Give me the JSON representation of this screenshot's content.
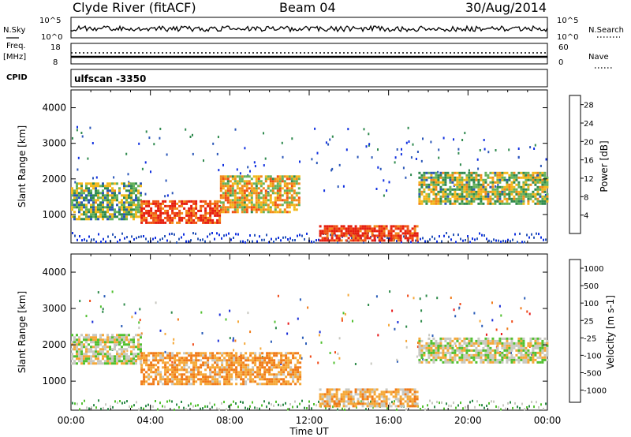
{
  "header": {
    "station": "Clyde River (fitACF)",
    "beam": "Beam 04",
    "date": "30/Aug/2014"
  },
  "top_panel": {
    "left_label": "N.Sky",
    "right_label": "N.Search",
    "left_ticks": [
      "10^5",
      "10^0"
    ],
    "right_ticks": [
      "10^5",
      "10^0"
    ]
  },
  "freq_panel": {
    "left_label_line1": "Freq.",
    "left_label_line2": "[MHz]",
    "right_label": "Nave",
    "left_ticks": [
      "18",
      "8"
    ],
    "right_ticks": [
      "60",
      "0"
    ]
  },
  "cpid_panel": {
    "label": "CPID",
    "value": "ulfscan -3350"
  },
  "colors": {
    "power_scale": [
      "#1030e0",
      "#2a56b8",
      "#2f8a4e",
      "#66b25a",
      "#f2b81a",
      "#f28a1a",
      "#f05012",
      "#e61e0e"
    ],
    "velocity_scale": [
      "#e8181a",
      "#f04a18",
      "#f07a18",
      "#f5a838",
      "#c8c8c0",
      "#52c030",
      "#2e8a4a",
      "#2a5cb8",
      "#1a2ed8"
    ]
  },
  "chart_data": [
    {
      "type": "heatmap",
      "title": "Power",
      "xlabel": "Time UT",
      "ylabel": "Slant Range [km]",
      "x_ticks": [
        "00:00",
        "04:00",
        "08:00",
        "12:00",
        "16:00",
        "20:00",
        "00:00"
      ],
      "x_range_hours": [
        0,
        24
      ],
      "y_ticks": [
        1000,
        2000,
        3000,
        4000
      ],
      "ylim": [
        200,
        4500
      ],
      "colorbar": {
        "label": "Power [dB]",
        "ticks": [
          4,
          8,
          12,
          16,
          20,
          24,
          28
        ],
        "range": [
          0,
          30
        ]
      },
      "echo_bands": [
        {
          "start_h": 0.0,
          "end_h": 3.5,
          "range_km": [
            900,
            1900
          ],
          "level_db": 12
        },
        {
          "start_h": 3.5,
          "end_h": 7.5,
          "range_km": [
            800,
            1400
          ],
          "level_db": 26
        },
        {
          "start_h": 7.5,
          "end_h": 11.5,
          "range_km": [
            1100,
            2100
          ],
          "level_db": 18
        },
        {
          "start_h": 12.5,
          "end_h": 17.5,
          "range_km": [
            300,
            700
          ],
          "level_db": 27
        },
        {
          "start_h": 17.5,
          "end_h": 24.0,
          "range_km": [
            1300,
            2200
          ],
          "level_db": 14
        }
      ]
    },
    {
      "type": "heatmap",
      "title": "Velocity",
      "xlabel": "Time UT",
      "ylabel": "Slant Range [km]",
      "x_ticks": [
        "00:00",
        "04:00",
        "08:00",
        "12:00",
        "16:00",
        "20:00",
        "00:00"
      ],
      "x_range_hours": [
        0,
        24
      ],
      "y_ticks": [
        1000,
        2000,
        3000,
        4000
      ],
      "ylim": [
        200,
        4500
      ],
      "colorbar": {
        "label": "Velocity [m s-1]",
        "ticks": [
          1000,
          500,
          100,
          25,
          -25,
          -100,
          -500,
          -1000
        ],
        "range": [
          -1000,
          1000
        ]
      },
      "echo_bands": [
        {
          "start_h": 0.0,
          "end_h": 3.5,
          "range_km": [
            1500,
            2300
          ],
          "velocity": 0
        },
        {
          "start_h": 3.5,
          "end_h": 11.5,
          "range_km": [
            900,
            1800
          ],
          "velocity": -300
        },
        {
          "start_h": 12.5,
          "end_h": 17.5,
          "range_km": [
            300,
            800
          ],
          "velocity": -200
        },
        {
          "start_h": 17.5,
          "end_h": 24.0,
          "range_km": [
            1500,
            2200
          ],
          "velocity": 0
        }
      ]
    }
  ]
}
